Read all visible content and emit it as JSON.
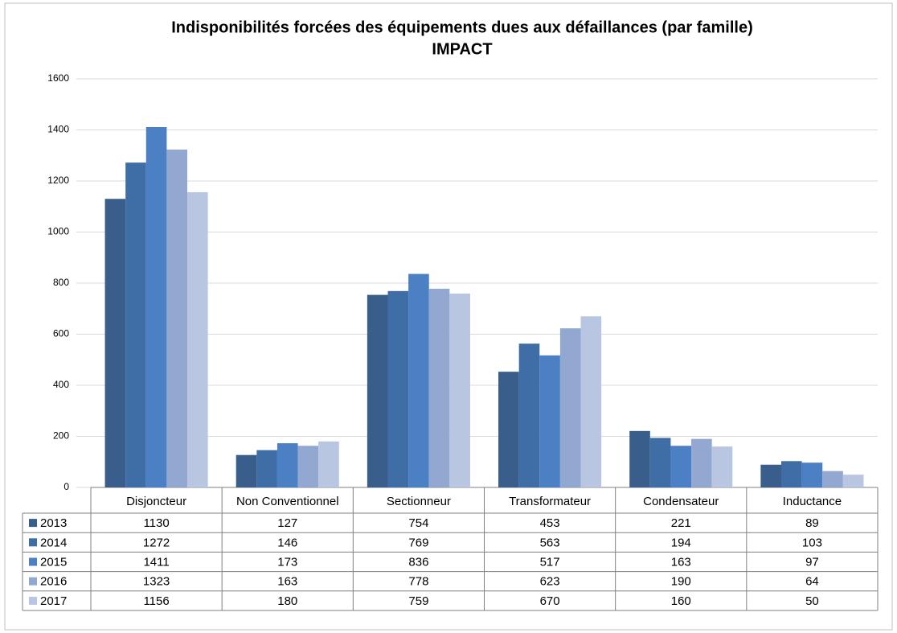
{
  "chart_data": {
    "type": "bar",
    "title": "Indisponibilités forcées des équipements dues aux défaillances (par famille)",
    "subtitle": "IMPACT",
    "categories": [
      "Disjoncteur",
      "Non Conventionnel",
      "Sectionneur",
      "Transformateur",
      "Condensateur",
      "Inductance"
    ],
    "series": [
      {
        "name": "2013",
        "color": "#3a5e8c",
        "values": [
          1130,
          127,
          754,
          453,
          221,
          89
        ]
      },
      {
        "name": "2014",
        "color": "#3f6ea6",
        "values": [
          1272,
          146,
          769,
          563,
          194,
          103
        ]
      },
      {
        "name": "2015",
        "color": "#4b80c4",
        "values": [
          1411,
          173,
          836,
          517,
          163,
          97
        ]
      },
      {
        "name": "2016",
        "color": "#93a8d0",
        "values": [
          1323,
          163,
          778,
          623,
          190,
          64
        ]
      },
      {
        "name": "2017",
        "color": "#b9c6e2",
        "values": [
          1156,
          180,
          759,
          670,
          160,
          50
        ]
      }
    ],
    "ylim": [
      0,
      1600
    ],
    "yticks": [
      0,
      200,
      400,
      600,
      800,
      1000,
      1200,
      1400,
      1600
    ],
    "grid": true
  }
}
